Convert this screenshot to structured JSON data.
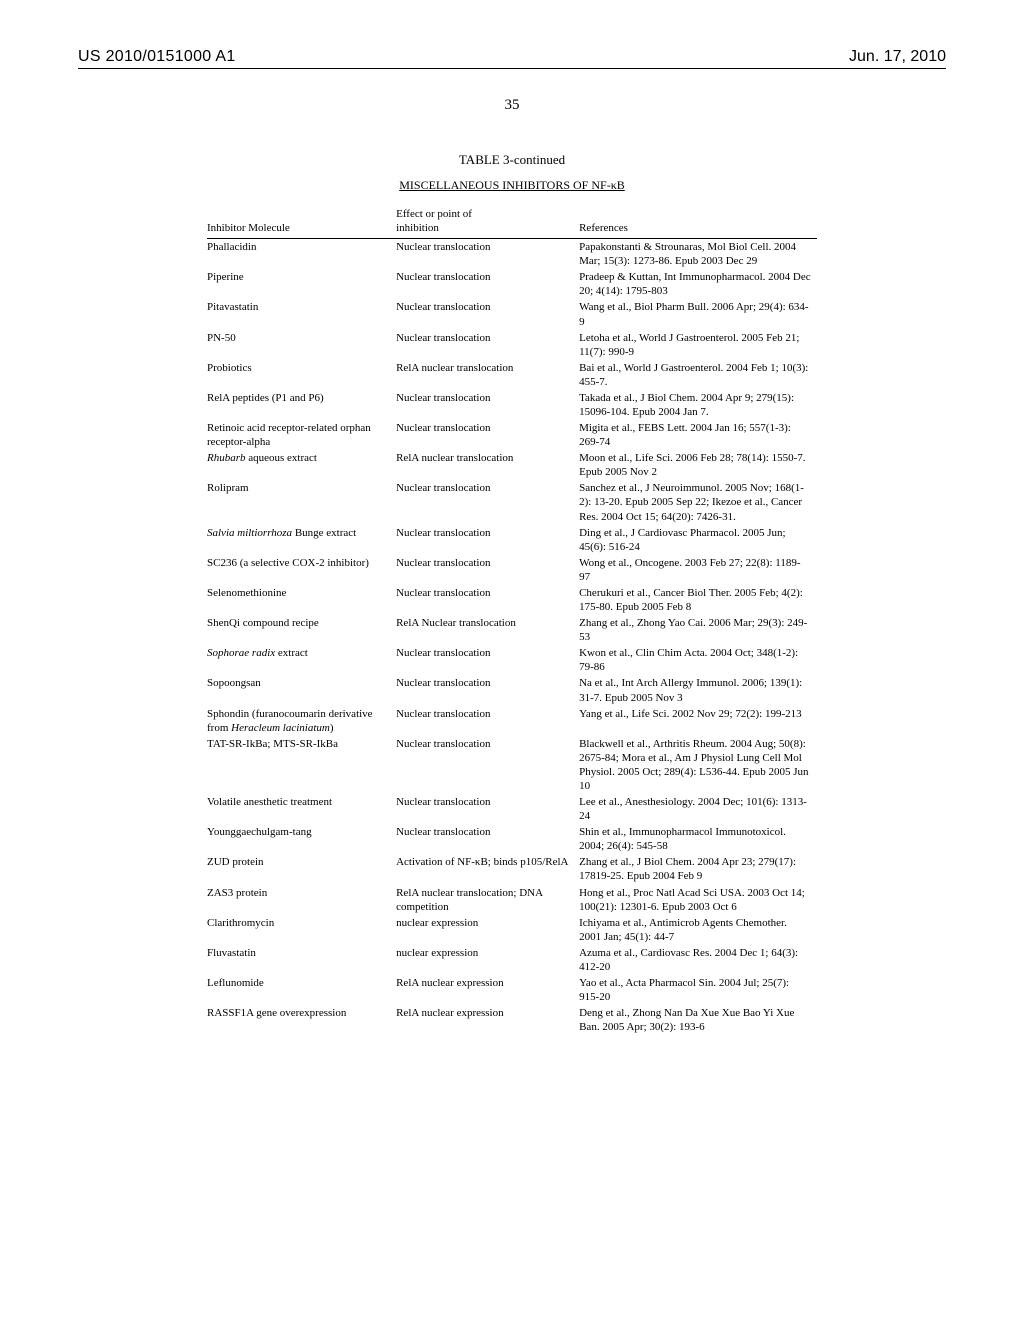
{
  "header": {
    "patent_number": "US 2010/0151000 A1",
    "pub_date": "Jun. 17, 2010",
    "page_number": "35"
  },
  "table": {
    "type": "table",
    "caption": "TABLE 3-continued",
    "subtitle": "MISCELLANEOUS INHIBITORS OF NF-κB",
    "columns": [
      {
        "label": "Inhibitor Molecule",
        "width_pct": 31
      },
      {
        "label_html": "Effect or point of<br>inhibition",
        "width_pct": 30
      },
      {
        "label": "References",
        "width_pct": 39
      }
    ],
    "font_size_pt": 11,
    "line_height": 1.28,
    "background_color": "#ffffff",
    "text_color": "#000000",
    "border_color": "#000000",
    "rows": [
      {
        "inhibitor": "Phallacidin",
        "effect": "Nuclear translocation",
        "ref": "Papakonstanti & Strounaras, Mol Biol Cell. 2004 Mar; 15(3): 1273-86. Epub 2003 Dec 29"
      },
      {
        "inhibitor": "Piperine",
        "effect": "Nuclear translocation",
        "ref": "Pradeep & Kuttan, Int Immunopharmacol. 2004 Dec 20; 4(14): 1795-803"
      },
      {
        "inhibitor": "Pitavastatin",
        "effect": "Nuclear translocation",
        "ref": "Wang et al., Biol Pharm Bull. 2006 Apr; 29(4): 634-9"
      },
      {
        "inhibitor": "PN-50",
        "effect": "Nuclear translocation",
        "ref": "Letoha et al., World J Gastroenterol. 2005 Feb 21; 11(7): 990-9"
      },
      {
        "inhibitor": "Probiotics",
        "effect": "RelA nuclear translocation",
        "ref": "Bai et al., World J Gastroenterol. 2004 Feb 1; 10(3): 455-7."
      },
      {
        "inhibitor": "RelA peptides (P1 and P6)",
        "effect": "Nuclear translocation",
        "ref": "Takada et al., J Biol Chem. 2004 Apr 9; 279(15): 15096-104. Epub 2004 Jan 7."
      },
      {
        "inhibitor": "Retinoic acid receptor-related orphan receptor-alpha",
        "effect": "Nuclear translocation",
        "ref": "Migita et al., FEBS Lett. 2004 Jan 16; 557(1-3): 269-74"
      },
      {
        "inhibitor_html": "<span class=\"ital\">Rhubarb</span> aqueous extract",
        "effect": "RelA nuclear translocation",
        "ref": "Moon et al., Life Sci. 2006 Feb 28; 78(14): 1550-7. Epub 2005 Nov 2"
      },
      {
        "inhibitor": "Rolipram",
        "effect": "Nuclear translocation",
        "ref": "Sanchez et al., J Neuroimmunol. 2005 Nov; 168(1-2): 13-20. Epub 2005 Sep 22; Ikezoe et al., Cancer Res. 2004 Oct 15; 64(20): 7426-31."
      },
      {
        "inhibitor_html": "<span class=\"ital\">Salvia miltiorrhoza</span> Bunge extract",
        "effect": "Nuclear translocation",
        "ref": "Ding et al., J Cardiovasc Pharmacol. 2005 Jun; 45(6): 516-24"
      },
      {
        "inhibitor": "SC236 (a selective COX-2 inhibitor)",
        "effect": "Nuclear translocation",
        "ref": "Wong et al., Oncogene. 2003 Feb 27; 22(8): 1189-97"
      },
      {
        "inhibitor": "Selenomethionine",
        "effect": "Nuclear translocation",
        "ref": "Cherukuri et al., Cancer Biol Ther. 2005 Feb; 4(2): 175-80. Epub 2005 Feb 8"
      },
      {
        "inhibitor": "ShenQi compound recipe",
        "effect": "RelA Nuclear translocation",
        "ref": "Zhang et al., Zhong Yao Cai. 2006 Mar; 29(3): 249-53"
      },
      {
        "inhibitor_html": "<span class=\"ital\">Sophorae radix</span> extract",
        "effect": "Nuclear translocation",
        "ref": "Kwon et al., Clin Chim Acta. 2004 Oct; 348(1-2): 79-86"
      },
      {
        "inhibitor": "Sopoongsan",
        "effect": "Nuclear translocation",
        "ref": "Na et al., Int Arch Allergy Immunol. 2006; 139(1): 31-7. Epub 2005 Nov 3"
      },
      {
        "inhibitor_html": "Sphondin (furanocoumarin derivative from <span class=\"ital\">Heracleum laciniatum</span>)",
        "effect": "Nuclear translocation",
        "ref": "Yang et al., Life Sci. 2002 Nov 29; 72(2): 199-213"
      },
      {
        "inhibitor": "TAT-SR-IkBa; MTS-SR-IkBa",
        "effect": "Nuclear translocation",
        "ref": "Blackwell et al., Arthritis Rheum. 2004 Aug; 50(8): 2675-84; Mora et al., Am J Physiol Lung Cell Mol Physiol. 2005 Oct; 289(4): L536-44. Epub 2005 Jun 10"
      },
      {
        "inhibitor": "Volatile anesthetic treatment",
        "effect": "Nuclear translocation",
        "ref": "Lee et al., Anesthesiology. 2004 Dec; 101(6): 1313-24"
      },
      {
        "inhibitor": "Younggaechulgam-tang",
        "effect": "Nuclear translocation",
        "ref": "Shin et al., Immunopharmacol Immunotoxicol. 2004; 26(4): 545-58"
      },
      {
        "inhibitor": "ZUD protein",
        "effect": "Activation of NF-κB; binds p105/RelA",
        "ref": "Zhang et al., J Biol Chem. 2004 Apr 23; 279(17): 17819-25. Epub 2004 Feb 9"
      },
      {
        "inhibitor": "ZAS3 protein",
        "effect": "RelA nuclear translocation; DNA competition",
        "ref": "Hong et al., Proc Natl Acad Sci USA. 2003 Oct 14; 100(21): 12301-6. Epub 2003 Oct 6"
      },
      {
        "inhibitor": "Clarithromycin",
        "effect": "nuclear expression",
        "ref": "Ichiyama et al., Antimicrob Agents Chemother. 2001 Jan; 45(1): 44-7"
      },
      {
        "inhibitor": "Fluvastatin",
        "effect": "nuclear expression",
        "ref": "Azuma et al., Cardiovasc Res. 2004 Dec 1; 64(3): 412-20"
      },
      {
        "inhibitor": "Leflunomide",
        "effect": "RelA nuclear expression",
        "ref": "Yao et al., Acta Pharmacol Sin. 2004 Jul; 25(7): 915-20"
      },
      {
        "inhibitor": "RASSF1A gene overexpression",
        "effect": "RelA nuclear expression",
        "ref": "Deng et al., Zhong Nan Da Xue Xue Bao Yi Xue Ban. 2005 Apr; 30(2): 193-6"
      }
    ]
  }
}
